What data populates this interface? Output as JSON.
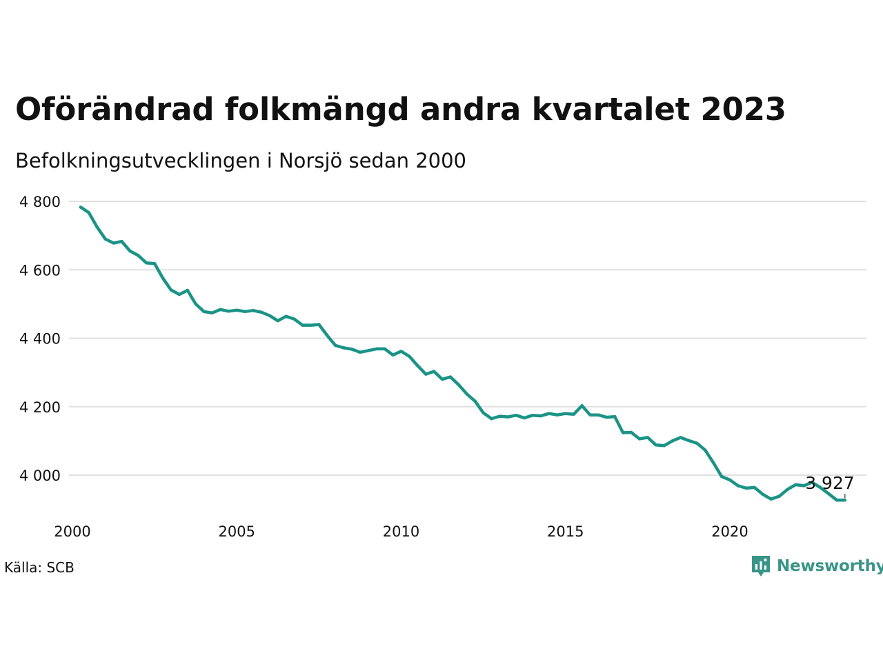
{
  "header": {
    "title": "Oförändrad folkmängd andra kvartalet 2023",
    "subtitle": "Befolkningsutvecklingen i Norsjö sedan 2000"
  },
  "footer": {
    "source": "Källa: SCB",
    "brand_name": "Newsworthy",
    "brand_icon": "chart-bubble-icon"
  },
  "colors": {
    "line": "#1b9387",
    "grid": "#e0e0e0",
    "brand": "#3a9488"
  },
  "chart_data": {
    "type": "line",
    "title": "Oförändrad folkmängd andra kvartalet 2023",
    "subtitle": "Befolkningsutvecklingen i Norsjö sedan 2000",
    "xlabel": "",
    "ylabel": "",
    "grid": true,
    "legend": "none",
    "x_ticks": [
      {
        "value": 2000,
        "label": "2000"
      },
      {
        "value": 2005,
        "label": "2005"
      },
      {
        "value": 2010,
        "label": "2010"
      },
      {
        "value": 2015,
        "label": "2015"
      },
      {
        "value": 2020,
        "label": "2020"
      }
    ],
    "y_ticks": [
      {
        "value": 4000,
        "label": "4 000"
      },
      {
        "value": 4200,
        "label": "4 200"
      },
      {
        "value": 4400,
        "label": "4 400"
      },
      {
        "value": 4600,
        "label": "4 600"
      },
      {
        "value": 4800,
        "label": "4 800"
      }
    ],
    "xlim": [
      2000,
      2023.5
    ],
    "ylim": [
      3880,
      4800
    ],
    "end_label": "3 927",
    "series": [
      {
        "x_start": 2000.25,
        "x_step": 0.25,
        "values": [
          4783,
          4767,
          4725,
          4690,
          4678,
          4683,
          4655,
          4642,
          4620,
          4618,
          4576,
          4541,
          4528,
          4540,
          4500,
          4478,
          4474,
          4484,
          4479,
          4482,
          4478,
          4481,
          4476,
          4466,
          4451,
          4464,
          4456,
          4438,
          4438,
          4440,
          4408,
          4379,
          4372,
          4368,
          4359,
          4364,
          4369,
          4369,
          4351,
          4362,
          4347,
          4320,
          4295,
          4303,
          4280,
          4287,
          4264,
          4237,
          4216,
          4182,
          4165,
          4172,
          4170,
          4175,
          4167,
          4175,
          4173,
          4180,
          4176,
          4180,
          4178,
          4203,
          4176,
          4176,
          4169,
          4171,
          4124,
          4125,
          4106,
          4110,
          4088,
          4086,
          4100,
          4110,
          4101,
          4093,
          4073,
          4036,
          3996,
          3986,
          3969,
          3962,
          3964,
          3944,
          3930,
          3938,
          3958,
          3972,
          3969,
          3979,
          3964,
          3946,
          3927,
          3927
        ]
      }
    ]
  }
}
